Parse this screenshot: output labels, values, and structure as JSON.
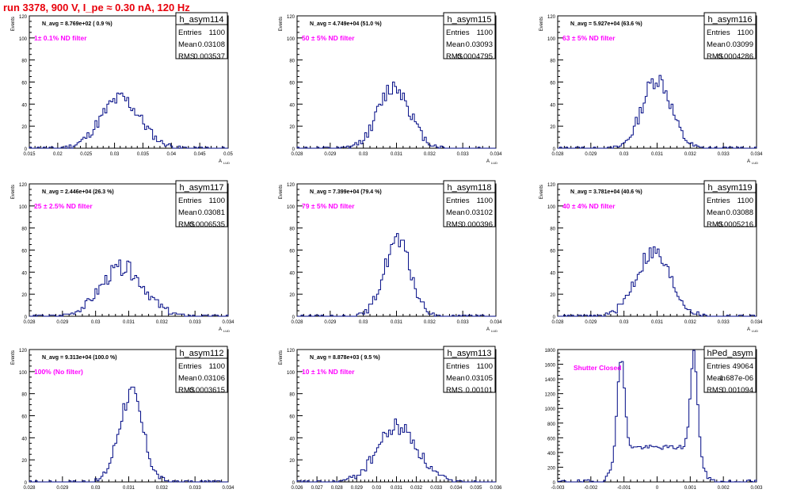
{
  "run_title": "run 3378,   900 V, I_pe ≈ 0.30 nA, 120 Hz",
  "chart_data": [
    {
      "type": "histogram",
      "name": "h_asym114",
      "navg": "N_avg = 8.769e+02 ( 0.9 %)",
      "filter": "1± 0.1% ND filter",
      "stats": [
        {
          "label": "Entries",
          "value": "1100"
        },
        {
          "label": "Mean",
          "value": "0.03108"
        },
        {
          "label": "RMS",
          "value": "0.003537"
        }
      ],
      "xlabel": "A",
      "xlabel_sub": "LUD",
      "ylabel": "Events",
      "ylim": [
        0,
        120
      ],
      "xlim": [
        0.015,
        0.05
      ],
      "yticks": [
        "0",
        "20",
        "40",
        "60",
        "80",
        "100",
        "120"
      ],
      "xticks": [
        "0.015",
        "0.02",
        "0.025",
        "0.03",
        "0.035",
        "0.04",
        "0.045",
        "0.05"
      ],
      "shape": {
        "mean": 0.03108,
        "sigma": 0.0035,
        "peak": 45,
        "seed": 11
      }
    },
    {
      "type": "histogram",
      "name": "h_asym115",
      "navg": "N_avg = 4.749e+04 (51.0 %)",
      "filter": "50 ± 5% ND filter",
      "stats": [
        {
          "label": "Entries",
          "value": "1100"
        },
        {
          "label": "Mean",
          "value": "0.03093"
        },
        {
          "label": "RMS",
          "value": "0.0004795"
        }
      ],
      "xlabel": "A",
      "xlabel_sub": "LUD",
      "ylabel": "Events",
      "ylim": [
        0,
        120
      ],
      "xlim": [
        0.028,
        0.034
      ],
      "yticks": [
        "0",
        "20",
        "40",
        "60",
        "80",
        "100",
        "120"
      ],
      "xticks": [
        "0.028",
        "0.029",
        "0.03",
        "0.031",
        "0.032",
        "0.033",
        "0.034"
      ],
      "shape": {
        "mean": 0.03093,
        "sigma": 0.00048,
        "peak": 56,
        "seed": 12
      }
    },
    {
      "type": "histogram",
      "name": "h_asym116",
      "navg": "N_avg = 5.927e+04 (63.6 %)",
      "filter": "63 ± 5% ND filter",
      "stats": [
        {
          "label": "Entries",
          "value": "1100"
        },
        {
          "label": "Mean",
          "value": "0.03099"
        },
        {
          "label": "RMS",
          "value": "0.0004286"
        }
      ],
      "xlabel": "A",
      "xlabel_sub": "LUD",
      "ylabel": "Events",
      "ylim": [
        0,
        120
      ],
      "xlim": [
        0.028,
        0.034
      ],
      "yticks": [
        "0",
        "20",
        "40",
        "60",
        "80",
        "100",
        "120"
      ],
      "xticks": [
        "0.028",
        "0.029",
        "0.03",
        "0.031",
        "0.032",
        "0.033",
        "0.034"
      ],
      "shape": {
        "mean": 0.03099,
        "sigma": 0.00043,
        "peak": 64,
        "seed": 13
      }
    },
    {
      "type": "histogram",
      "name": "h_asym117",
      "navg": "N_avg = 2.446e+04 (26.3 %)",
      "filter": "25 ± 2.5% ND filter",
      "stats": [
        {
          "label": "Entries",
          "value": "1100"
        },
        {
          "label": "Mean",
          "value": "0.03081"
        },
        {
          "label": "RMS",
          "value": "0.0006535"
        }
      ],
      "xlabel": "A",
      "xlabel_sub": "LUD",
      "ylabel": "Events",
      "ylim": [
        0,
        120
      ],
      "xlim": [
        0.028,
        0.034
      ],
      "yticks": [
        "0",
        "20",
        "40",
        "60",
        "80",
        "100",
        "120"
      ],
      "xticks": [
        "0.028",
        "0.029",
        "0.03",
        "0.031",
        "0.032",
        "0.033",
        "0.034"
      ],
      "shape": {
        "mean": 0.03081,
        "sigma": 0.00065,
        "peak": 44,
        "seed": 14
      }
    },
    {
      "type": "histogram",
      "name": "h_asym118",
      "navg": "N_avg = 7.399e+04 (79.4 %)",
      "filter": "79 ± 5% ND filter",
      "stats": [
        {
          "label": "Entries",
          "value": "1100"
        },
        {
          "label": "Mean",
          "value": "0.03102"
        },
        {
          "label": "RMS",
          "value": "0.000396"
        }
      ],
      "xlabel": "A",
      "xlabel_sub": "LUD",
      "ylabel": "Events",
      "ylim": [
        0,
        120
      ],
      "xlim": [
        0.028,
        0.034
      ],
      "yticks": [
        "0",
        "20",
        "40",
        "60",
        "80",
        "100",
        "120"
      ],
      "xticks": [
        "0.028",
        "0.029",
        "0.03",
        "0.031",
        "0.032",
        "0.033",
        "0.034"
      ],
      "shape": {
        "mean": 0.03102,
        "sigma": 0.0004,
        "peak": 68,
        "seed": 15
      }
    },
    {
      "type": "histogram",
      "name": "h_asym119",
      "navg": "N_avg = 3.781e+04 (40.6 %)",
      "filter": "40 ± 4% ND filter",
      "stats": [
        {
          "label": "Entries",
          "value": "1100"
        },
        {
          "label": "Mean",
          "value": "0.03088"
        },
        {
          "label": "RMS",
          "value": "0.0005216"
        }
      ],
      "xlabel": "A",
      "xlabel_sub": "LUD",
      "ylabel": "Events",
      "ylim": [
        0,
        120
      ],
      "xlim": [
        0.028,
        0.034
      ],
      "yticks": [
        "0",
        "20",
        "40",
        "60",
        "80",
        "100",
        "120"
      ],
      "xticks": [
        "0.028",
        "0.029",
        "0.03",
        "0.031",
        "0.032",
        "0.033",
        "0.034"
      ],
      "shape": {
        "mean": 0.03088,
        "sigma": 0.00052,
        "peak": 58,
        "seed": 16
      }
    },
    {
      "type": "histogram",
      "name": "h_asym112",
      "navg": "N_avg = 9.313e+04 (100.0 %)",
      "filter": "100% (No filter)",
      "stats": [
        {
          "label": "Entries",
          "value": "1100"
        },
        {
          "label": "Mean",
          "value": "0.03106"
        },
        {
          "label": "RMS",
          "value": "0.0003615"
        }
      ],
      "xlabel": "A",
      "xlabel_sub": "LUD",
      "ylabel": "Events",
      "ylim": [
        0,
        120
      ],
      "xlim": [
        0.028,
        0.034
      ],
      "yticks": [
        "0",
        "20",
        "40",
        "60",
        "80",
        "100",
        "120"
      ],
      "xticks": [
        "0.028",
        "0.029",
        "0.03",
        "0.031",
        "0.032",
        "0.033",
        "0.034"
      ],
      "shape": {
        "mean": 0.03106,
        "sigma": 0.00036,
        "peak": 80,
        "seed": 17
      }
    },
    {
      "type": "histogram",
      "name": "h_asym113",
      "navg": "N_avg = 8.878e+03 ( 9.5 %)",
      "filter": "10 ± 1% ND filter",
      "stats": [
        {
          "label": "Entries",
          "value": "1100"
        },
        {
          "label": "Mean",
          "value": "0.03105"
        },
        {
          "label": "RMS",
          "value": "0.00101"
        }
      ],
      "xlabel": "A",
      "xlabel_sub": "LUD",
      "ylabel": "Events",
      "ylim": [
        0,
        120
      ],
      "xlim": [
        0.026,
        0.036
      ],
      "yticks": [
        "0",
        "20",
        "40",
        "60",
        "80",
        "100",
        "120"
      ],
      "xticks": [
        "0.026",
        "0.027",
        "0.028",
        "0.029",
        "0.03",
        "0.031",
        "0.032",
        "0.033",
        "0.034",
        "0.035",
        "0.036"
      ],
      "shape": {
        "mean": 0.03105,
        "sigma": 0.001,
        "peak": 50,
        "seed": 18
      }
    },
    {
      "type": "histogram",
      "name": "hPed_asym",
      "navg": "",
      "filter": "Shutter Closed",
      "stats": [
        {
          "label": "Entries",
          "value": "49064"
        },
        {
          "label": "Mean",
          "value": "1.687e-06"
        },
        {
          "label": "RMS",
          "value": "0.001094"
        }
      ],
      "xlabel": "",
      "xlabel_sub": "",
      "ylabel": "",
      "ylim": [
        0,
        1800
      ],
      "xlim": [
        -0.003,
        0.003
      ],
      "yticks": [
        "0",
        "200",
        "400",
        "600",
        "800",
        "1000",
        "1200",
        "1400",
        "1600",
        "1800"
      ],
      "xticks": [
        "-0.003",
        "-0.002",
        "-0.001",
        "0",
        "0.001",
        "0.002",
        "0.003"
      ],
      "shape": {
        "bimodal": true,
        "centers": [
          -0.0011,
          0.00112
        ],
        "sigma": 0.00011,
        "peak": 1780,
        "plateau": 470,
        "seed": 19
      }
    }
  ]
}
